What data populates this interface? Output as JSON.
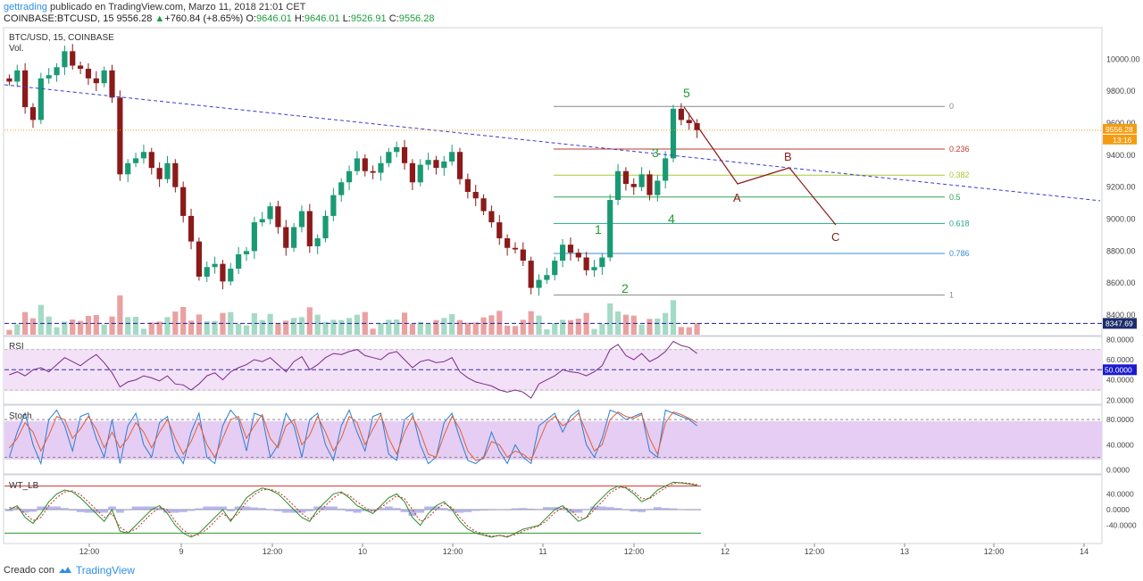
{
  "header": {
    "author": "gettrading",
    "published": "publicado en TradingView.com, Marzo 11, 2018 21:01 CET",
    "symbol_line": "COINBASE:BTCUSD, 15",
    "last": "9556.28",
    "change": "+760.84 (+8.65%)",
    "o_label": "O:",
    "o_val": "9646.01",
    "h_label": "H:",
    "h_val": "9646.01",
    "l_label": "L:",
    "l_val": "9526.91",
    "c_label": "C:",
    "c_val": "9556.28"
  },
  "chart_data": {
    "type": "candlestick",
    "title": "BTC/USD, 15, COINBASE",
    "volume_label": "Vol.",
    "ylim": [
      8330,
      10180
    ],
    "y_ticks": [
      "10000.00",
      "9800.00",
      "9600.00",
      "9400.00",
      "9200.00",
      "9000.00",
      "8800.00",
      "8600.00",
      "8400.00"
    ],
    "current_price": "9556.28",
    "countdown": "13:16",
    "hline_price": "8347.69",
    "x_ticks": [
      "12:00",
      "9",
      "12:00",
      "10",
      "12:00",
      "11",
      "12:00",
      "12",
      "12:00",
      "13",
      "12:00",
      "14"
    ],
    "fibonacci": {
      "levels": [
        0,
        0.236,
        0.382,
        0.5,
        0.618,
        0.786,
        1
      ],
      "labels": [
        "0",
        "0.236",
        "0.382",
        "0.5",
        "0.618",
        "0.786",
        "1"
      ],
      "prices": [
        9705,
        9438,
        9275,
        9138,
        8973,
        8785,
        8525
      ],
      "colors": [
        "#888888",
        "#c0392b",
        "#a9c934",
        "#2fa552",
        "#2aa58f",
        "#3b8ed6",
        "#888888"
      ]
    },
    "elliott_waves": [
      "1",
      "2",
      "3",
      "4",
      "5"
    ],
    "abc_waves": [
      "A",
      "B",
      "C"
    ],
    "close_path": [
      9860,
      9930,
      9700,
      9620,
      9880,
      9900,
      9950,
      10050,
      9960,
      9940,
      9880,
      9850,
      9930,
      9760,
      9280,
      9350,
      9380,
      9420,
      9320,
      9250,
      9350,
      9200,
      9020,
      8860,
      8640,
      8700,
      8720,
      8610,
      8690,
      8780,
      8800,
      8980,
      9000,
      9080,
      8950,
      8820,
      8950,
      9050,
      8830,
      8880,
      9020,
      9150,
      9230,
      9300,
      9380,
      9300,
      9290,
      9350,
      9420,
      9450,
      9350,
      9230,
      9340,
      9370,
      9320,
      9360,
      9420,
      9250,
      9170,
      9130,
      9050,
      8980,
      8880,
      8820,
      8810,
      8740,
      8570,
      8620,
      8650,
      8740,
      8840,
      8790,
      8760,
      8680,
      8700,
      8760,
      9120,
      9300,
      9220,
      9200,
      9280,
      9150,
      9240,
      9380,
      9690,
      9620,
      9600,
      9556
    ]
  },
  "rsi": {
    "label": "RSI",
    "y_ticks": [
      "80.0000",
      "60.0000",
      "40.0000",
      "20.0000"
    ],
    "level_tag": "50.0000",
    "values": [
      45,
      48,
      44,
      50,
      52,
      48,
      55,
      62,
      58,
      54,
      60,
      65,
      57,
      47,
      33,
      38,
      40,
      44,
      42,
      39,
      44,
      36,
      35,
      30,
      36,
      44,
      47,
      40,
      48,
      52,
      55,
      60,
      58,
      62,
      55,
      48,
      58,
      63,
      50,
      55,
      62,
      66,
      65,
      68,
      70,
      64,
      62,
      60,
      66,
      68,
      60,
      52,
      58,
      60,
      57,
      58,
      62,
      48,
      42,
      38,
      36,
      34,
      30,
      28,
      30,
      28,
      22,
      36,
      40,
      44,
      50,
      48,
      47,
      44,
      48,
      54,
      70,
      75,
      64,
      60,
      66,
      58,
      62,
      68,
      78,
      74,
      72,
      66
    ]
  },
  "stoch": {
    "label": "Stoch",
    "y_ticks": [
      "80.0000",
      "40.0000",
      "0.0000"
    ],
    "k": [
      20,
      60,
      90,
      40,
      10,
      80,
      95,
      70,
      30,
      85,
      90,
      50,
      20,
      80,
      10,
      70,
      90,
      40,
      20,
      75,
      85,
      30,
      10,
      60,
      90,
      20,
      10,
      70,
      95,
      80,
      30,
      90,
      85,
      20,
      40,
      90,
      70,
      20,
      80,
      90,
      40,
      15,
      70,
      95,
      60,
      30,
      85,
      90,
      25,
      15,
      80,
      90,
      40,
      10,
      20,
      75,
      90,
      50,
      15,
      10,
      20,
      60,
      30,
      10,
      40,
      20,
      10,
      70,
      80,
      90,
      60,
      85,
      95,
      40,
      20,
      50,
      95,
      90,
      80,
      85,
      90,
      30,
      20,
      95,
      90,
      85,
      80,
      70
    ],
    "d": [
      35,
      50,
      75,
      60,
      30,
      55,
      85,
      80,
      50,
      65,
      85,
      65,
      35,
      60,
      35,
      50,
      75,
      60,
      35,
      60,
      80,
      50,
      25,
      45,
      75,
      40,
      20,
      50,
      80,
      85,
      50,
      70,
      88,
      50,
      35,
      70,
      80,
      40,
      55,
      85,
      60,
      30,
      50,
      85,
      75,
      40,
      65,
      88,
      50,
      25,
      60,
      85,
      60,
      25,
      20,
      55,
      85,
      65,
      30,
      15,
      18,
      45,
      40,
      20,
      30,
      25,
      15,
      45,
      75,
      85,
      70,
      78,
      90,
      60,
      30,
      40,
      80,
      92,
      85,
      82,
      88,
      50,
      25,
      75,
      92,
      88,
      82,
      75
    ]
  },
  "wt": {
    "label": "WT_LB",
    "y_ticks": [
      "40.0000",
      "0.0000",
      "-40.0000"
    ],
    "wt1": [
      0,
      10,
      -20,
      -35,
      -10,
      20,
      40,
      50,
      45,
      30,
      10,
      -10,
      -30,
      0,
      -55,
      -60,
      -40,
      -20,
      0,
      10,
      -10,
      -40,
      -60,
      -70,
      -60,
      -40,
      -20,
      0,
      -30,
      0,
      30,
      45,
      55,
      50,
      40,
      20,
      0,
      -20,
      -30,
      0,
      20,
      40,
      45,
      30,
      10,
      0,
      -10,
      10,
      30,
      40,
      20,
      -20,
      -40,
      -10,
      10,
      20,
      0,
      -30,
      -50,
      -60,
      -65,
      -70,
      -65,
      -70,
      -60,
      -50,
      -45,
      -40,
      -20,
      0,
      10,
      -10,
      -30,
      -20,
      10,
      30,
      50,
      60,
      55,
      40,
      20,
      30,
      50,
      60,
      70,
      68,
      65,
      62
    ],
    "wt2": [
      5,
      5,
      -10,
      -28,
      -20,
      10,
      30,
      45,
      48,
      38,
      20,
      0,
      -20,
      -10,
      -45,
      -58,
      -50,
      -30,
      -10,
      5,
      0,
      -30,
      -52,
      -66,
      -64,
      -50,
      -30,
      -10,
      -25,
      -10,
      20,
      38,
      50,
      52,
      45,
      30,
      10,
      -10,
      -25,
      -10,
      10,
      30,
      42,
      36,
      20,
      5,
      -5,
      5,
      20,
      35,
      28,
      0,
      -30,
      -20,
      0,
      15,
      5,
      -20,
      -42,
      -56,
      -62,
      -68,
      -66,
      -68,
      -64,
      -55,
      -48,
      -42,
      -28,
      -8,
      5,
      0,
      -20,
      -22,
      0,
      20,
      42,
      55,
      57,
      46,
      28,
      28,
      42,
      55,
      66,
      69,
      67,
      64
    ]
  },
  "footer": {
    "created_with": "Creado con",
    "brand": "TradingView"
  },
  "colors": {
    "up": "#1a9a74",
    "down": "#8b1a1a",
    "trend": "#3b3bd1",
    "price_line": "#f39c12",
    "wave_green": "#1f9d2a",
    "wave_red": "#8b1a1a"
  }
}
